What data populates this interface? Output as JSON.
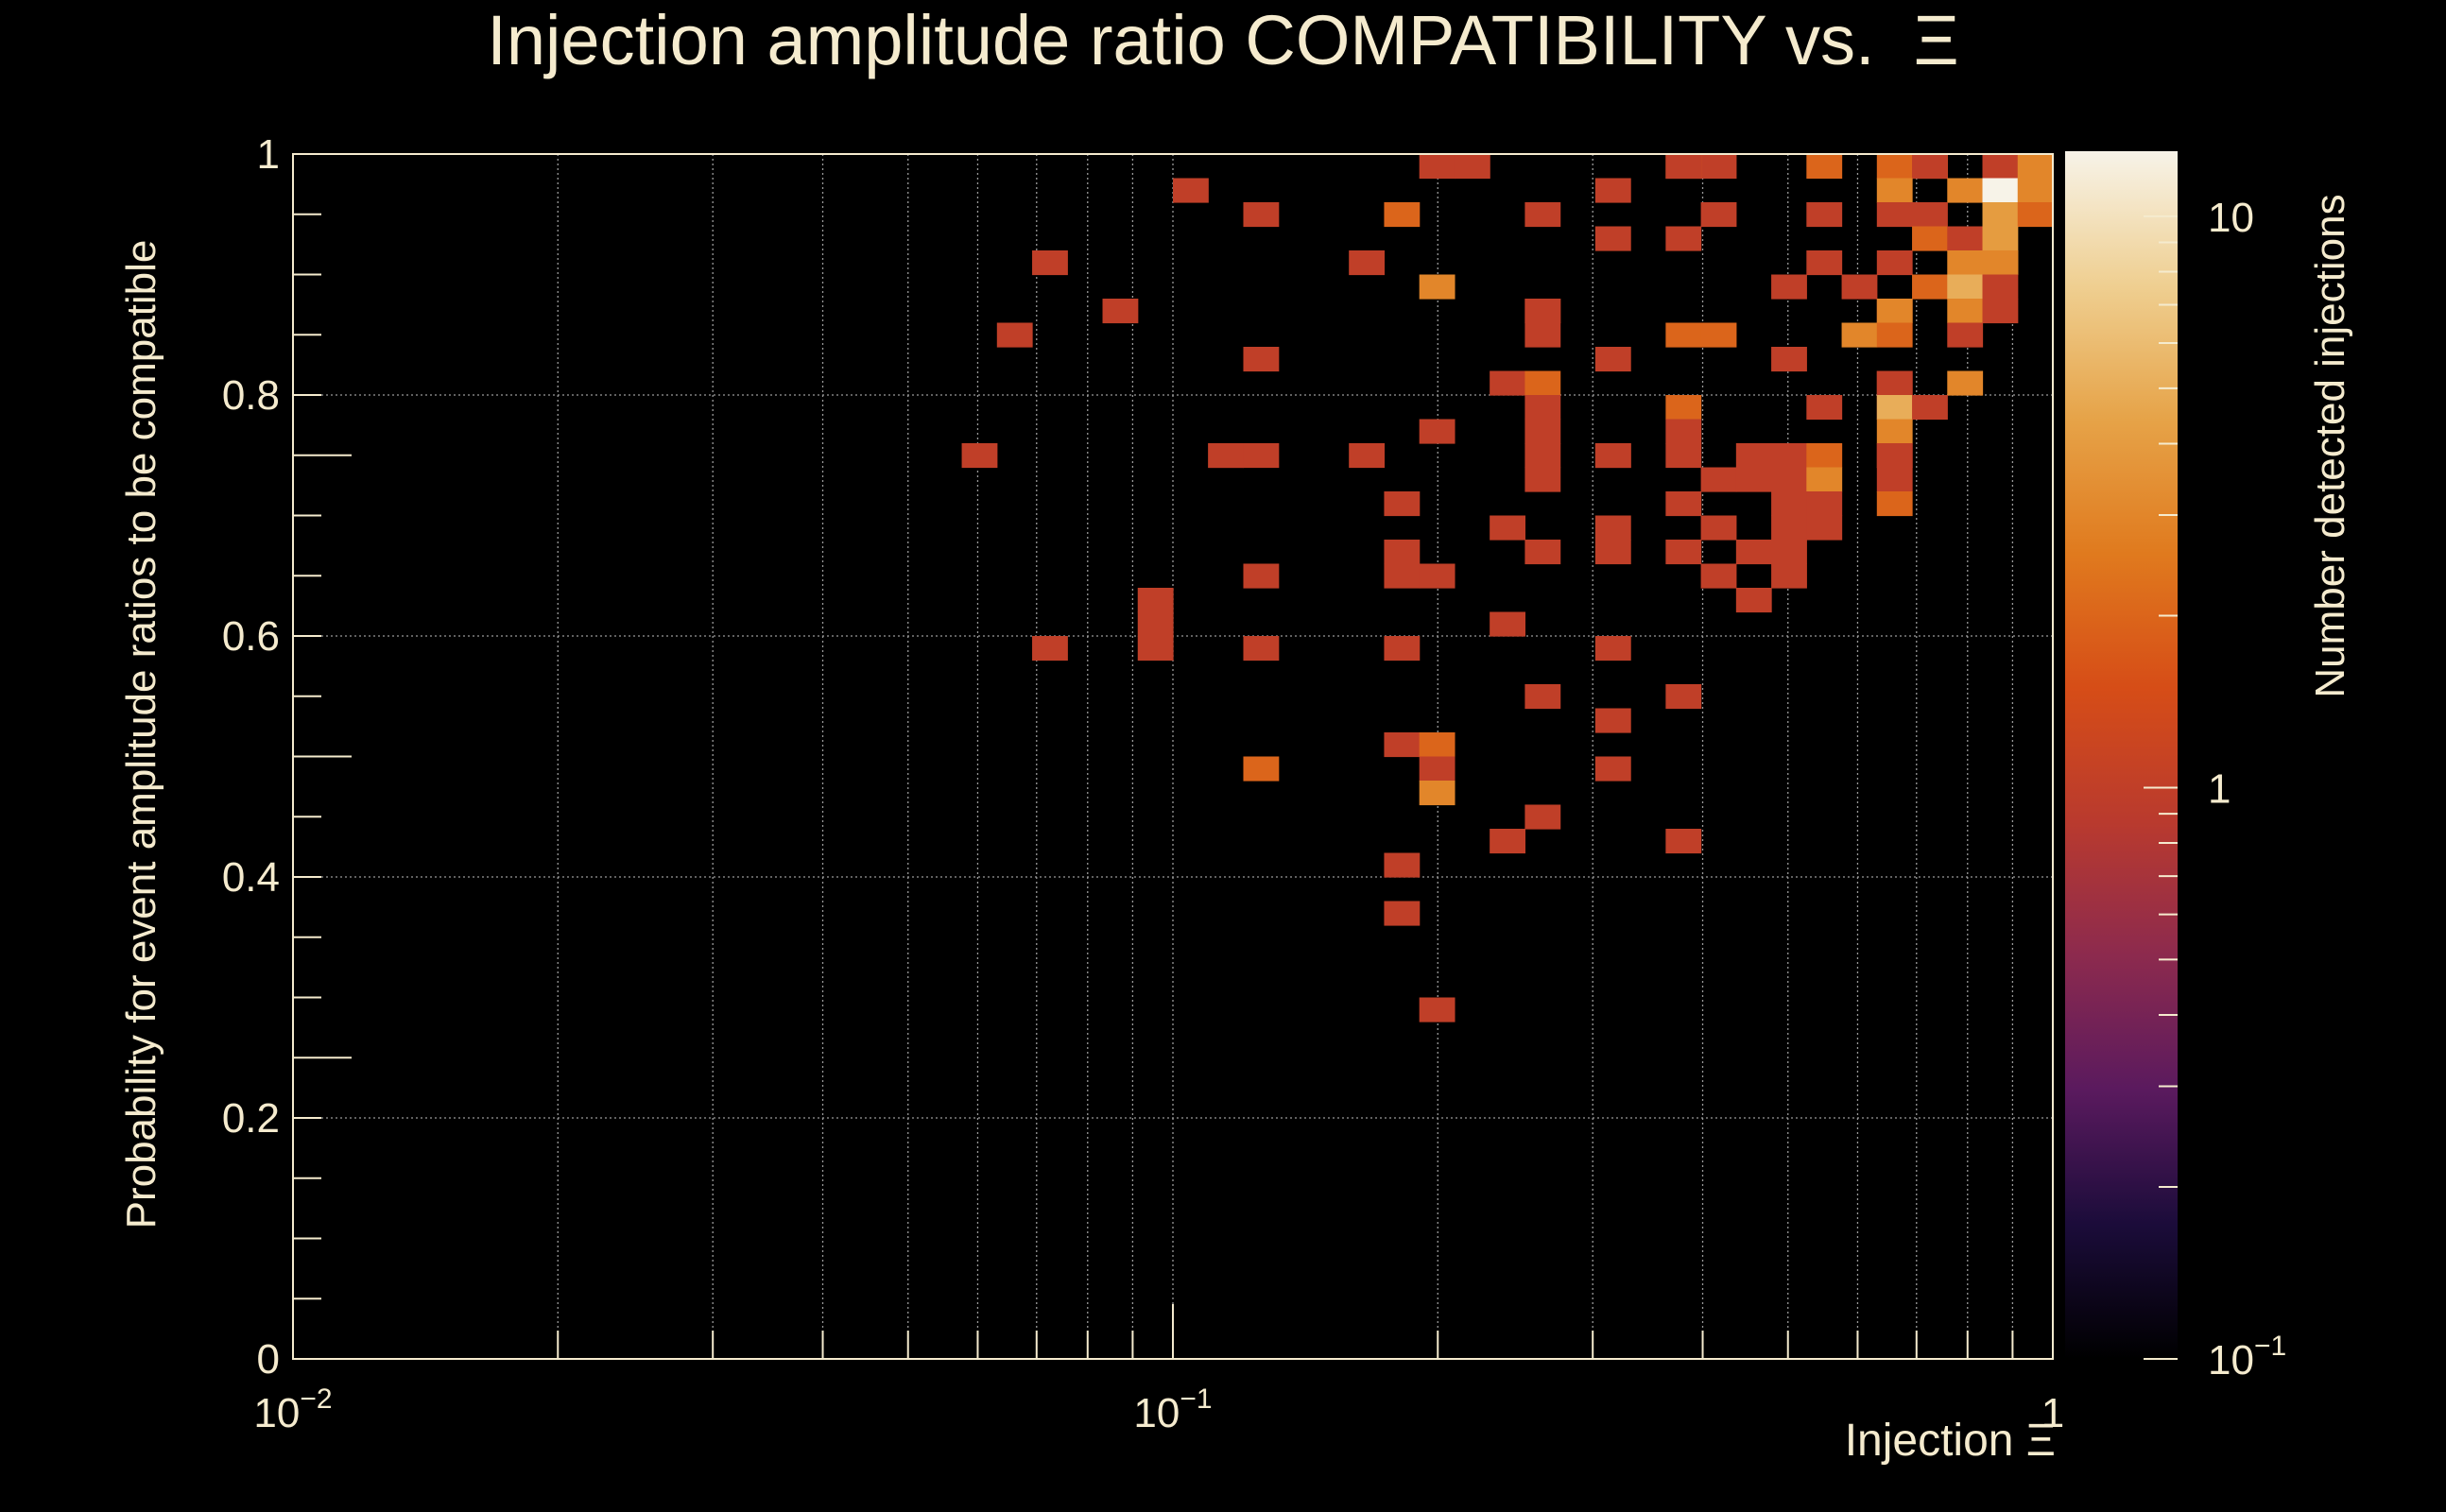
{
  "chart_data": {
    "type": "heatmap",
    "title": "Injection amplitude ratio COMPATIBILITY vs.  Ξ",
    "xlabel": "Injection Ξ",
    "ylabel": "Probability for event amplitude ratios to be compatible",
    "zlabel": "Number detected injections",
    "x_scale": "log",
    "z_scale": "log",
    "xlim": [
      0.01,
      1
    ],
    "ylim": [
      0,
      1
    ],
    "zlim": [
      0.1,
      13
    ],
    "grid": true,
    "bins_x": 50,
    "bins_y": 50,
    "x_ticks": [
      {
        "value": 0.01,
        "base": "10",
        "exp": "−2"
      },
      {
        "value": 0.1,
        "base": "10",
        "exp": "−1"
      },
      {
        "value": 1,
        "base": "1",
        "exp": ""
      }
    ],
    "y_ticks": [
      {
        "value": 0,
        "label": "0"
      },
      {
        "value": 0.2,
        "label": "0.2"
      },
      {
        "value": 0.4,
        "label": "0.4"
      },
      {
        "value": 0.6,
        "label": "0.6"
      },
      {
        "value": 0.8,
        "label": "0.8"
      },
      {
        "value": 1,
        "label": "1"
      }
    ],
    "z_ticks": [
      {
        "value": 0.1,
        "base": "10",
        "exp": "−1"
      },
      {
        "value": 1,
        "base": "1",
        "exp": ""
      },
      {
        "value": 10,
        "base": "10",
        "exp": ""
      }
    ],
    "colorscale": [
      "#000000",
      "#1b0c3a",
      "#5a1a5e",
      "#8c2a4e",
      "#b93a2e",
      "#d64d17",
      "#e07a1e",
      "#e6a348",
      "#efcf91",
      "#f7f3e8"
    ],
    "cells": [
      [
        0.1995,
        1.0,
        1
      ],
      [
        0.2187,
        1.0,
        1
      ],
      [
        0.4365,
        1.0,
        1
      ],
      [
        0.7244,
        1.0,
        3
      ],
      [
        0.8318,
        1.0,
        1
      ],
      [
        0.912,
        1.0,
        3
      ],
      [
        0.3631,
        0.98,
        2
      ],
      [
        0.3981,
        0.98,
        1
      ],
      [
        0.5495,
        0.98,
        2
      ],
      [
        0.631,
        0.98,
        2
      ],
      [
        0.7244,
        0.98,
        1
      ],
      [
        0.8318,
        0.98,
        1
      ],
      [
        0.912,
        0.98,
        1
      ],
      [
        0.955,
        0.98,
        3
      ],
      [
        0.1096,
        0.96,
        1
      ],
      [
        0.3311,
        0.96,
        1
      ],
      [
        0.6918,
        0.96,
        3
      ],
      [
        0.7586,
        0.96,
        3
      ],
      [
        0.8318,
        0.96,
        1
      ],
      [
        0.871,
        0.96,
        13
      ],
      [
        0.955,
        0.96,
        3
      ],
      [
        0.1318,
        0.94,
        1
      ],
      [
        0.1738,
        0.94,
        2
      ],
      [
        0.2754,
        0.94,
        1
      ],
      [
        0.4365,
        0.94,
        1
      ],
      [
        0.5754,
        0.94,
        1
      ],
      [
        0.631,
        0.94,
        1
      ],
      [
        0.7244,
        0.94,
        1
      ],
      [
        0.8318,
        0.94,
        1
      ],
      [
        0.912,
        0.94,
        4
      ],
      [
        0.955,
        0.94,
        2
      ],
      [
        0.302,
        0.92,
        1
      ],
      [
        0.3631,
        0.92,
        1
      ],
      [
        0.7244,
        0.92,
        2
      ],
      [
        0.7943,
        0.92,
        1
      ],
      [
        0.912,
        0.92,
        4
      ],
      [
        0.0724,
        0.9,
        1
      ],
      [
        0.1585,
        0.9,
        1
      ],
      [
        0.5495,
        0.9,
        1
      ],
      [
        0.6918,
        0.9,
        1
      ],
      [
        0.7586,
        0.9,
        3
      ],
      [
        0.8318,
        0.9,
        4
      ],
      [
        0.912,
        0.9,
        3
      ],
      [
        0.2089,
        0.88,
        3
      ],
      [
        0.5012,
        0.88,
        1
      ],
      [
        0.6026,
        0.88,
        1
      ],
      [
        0.7244,
        0.88,
        2
      ],
      [
        0.7943,
        0.88,
        5
      ],
      [
        0.871,
        0.88,
        1
      ],
      [
        0.0871,
        0.86,
        1
      ],
      [
        0.2512,
        0.86,
        1
      ],
      [
        0.2754,
        0.86,
        1
      ],
      [
        0.631,
        0.86,
        1
      ],
      [
        0.6918,
        0.86,
        3
      ],
      [
        0.7586,
        0.86,
        3
      ],
      [
        0.8318,
        0.86,
        1
      ],
      [
        0.0661,
        0.84,
        1
      ],
      [
        0.2754,
        0.84,
        1
      ],
      [
        0.3631,
        0.84,
        2
      ],
      [
        0.4365,
        0.84,
        2
      ],
      [
        0.6026,
        0.84,
        3
      ],
      [
        0.661,
        0.84,
        2
      ],
      [
        0.7943,
        0.84,
        1
      ],
      [
        0.1318,
        0.82,
        1
      ],
      [
        0.302,
        0.82,
        1
      ],
      [
        0.5012,
        0.82,
        1
      ],
      [
        0.2291,
        0.8,
        1
      ],
      [
        0.2754,
        0.8,
        2
      ],
      [
        0.631,
        0.8,
        1
      ],
      [
        0.6918,
        0.8,
        1
      ],
      [
        0.7586,
        0.8,
        3
      ],
      [
        0.2754,
        0.78,
        1
      ],
      [
        0.3631,
        0.78,
        2
      ],
      [
        0.5754,
        0.78,
        1
      ],
      [
        0.631,
        0.78,
        1
      ],
      [
        0.6918,
        0.78,
        5
      ],
      [
        0.7244,
        0.78,
        1
      ],
      [
        0.2089,
        0.76,
        1
      ],
      [
        0.2754,
        0.76,
        1
      ],
      [
        0.3981,
        0.76,
        1
      ],
      [
        0.661,
        0.76,
        3
      ],
      [
        0.0603,
        0.74,
        1
      ],
      [
        0.115,
        0.74,
        1
      ],
      [
        0.1202,
        0.74,
        1
      ],
      [
        0.1259,
        0.74,
        1
      ],
      [
        0.1585,
        0.74,
        1
      ],
      [
        0.2512,
        0.74,
        1
      ],
      [
        0.302,
        0.74,
        1
      ],
      [
        0.3311,
        0.74,
        1
      ],
      [
        0.3631,
        0.74,
        1
      ],
      [
        0.4786,
        0.74,
        1
      ],
      [
        0.5248,
        0.74,
        1
      ],
      [
        0.5754,
        0.74,
        2
      ],
      [
        0.631,
        0.74,
        1
      ],
      [
        0.6918,
        0.74,
        1
      ],
      [
        0.2754,
        0.72,
        1
      ],
      [
        0.4365,
        0.72,
        1
      ],
      [
        0.4786,
        0.72,
        1
      ],
      [
        0.5248,
        0.72,
        1
      ],
      [
        0.5754,
        0.72,
        3
      ],
      [
        0.631,
        0.72,
        1
      ],
      [
        0.1905,
        0.7,
        1
      ],
      [
        0.3631,
        0.7,
        1
      ],
      [
        0.5248,
        0.7,
        1
      ],
      [
        0.5754,
        0.7,
        1
      ],
      [
        0.631,
        0.7,
        2
      ],
      [
        0.2291,
        0.68,
        1
      ],
      [
        0.3311,
        0.68,
        1
      ],
      [
        0.4365,
        0.68,
        1
      ],
      [
        0.5248,
        0.68,
        1
      ],
      [
        0.5754,
        0.68,
        1
      ],
      [
        0.1905,
        0.66,
        1
      ],
      [
        0.2512,
        0.66,
        1
      ],
      [
        0.3311,
        0.66,
        1
      ],
      [
        0.3981,
        0.66,
        1
      ],
      [
        0.4786,
        0.66,
        1
      ],
      [
        0.5248,
        0.66,
        1
      ],
      [
        0.1318,
        0.64,
        1
      ],
      [
        0.1905,
        0.64,
        1
      ],
      [
        0.2089,
        0.64,
        1
      ],
      [
        0.4365,
        0.64,
        1
      ],
      [
        0.5248,
        0.64,
        1
      ],
      [
        0.0955,
        0.62,
        1
      ],
      [
        0.4786,
        0.62,
        1
      ],
      [
        0.0955,
        0.6,
        1
      ],
      [
        0.2291,
        0.6,
        1
      ],
      [
        0.0724,
        0.58,
        1
      ],
      [
        0.0955,
        0.58,
        1
      ],
      [
        0.1259,
        0.58,
        1
      ],
      [
        0.1905,
        0.58,
        1
      ],
      [
        0.3311,
        0.58,
        1
      ],
      [
        0.2754,
        0.54,
        1
      ],
      [
        0.3981,
        0.54,
        1
      ],
      [
        0.3311,
        0.52,
        1
      ],
      [
        0.1738,
        0.5,
        1
      ],
      [
        0.2089,
        0.5,
        2
      ],
      [
        0.1259,
        0.48,
        2
      ],
      [
        0.2089,
        0.48,
        1
      ],
      [
        0.302,
        0.48,
        1
      ],
      [
        0.2089,
        0.46,
        3
      ],
      [
        0.2754,
        0.44,
        1
      ],
      [
        0.2291,
        0.42,
        1
      ],
      [
        0.3981,
        0.42,
        1
      ],
      [
        0.1738,
        0.4,
        1
      ],
      [
        0.1738,
        0.36,
        1
      ],
      [
        0.2089,
        0.28,
        1
      ]
    ]
  }
}
